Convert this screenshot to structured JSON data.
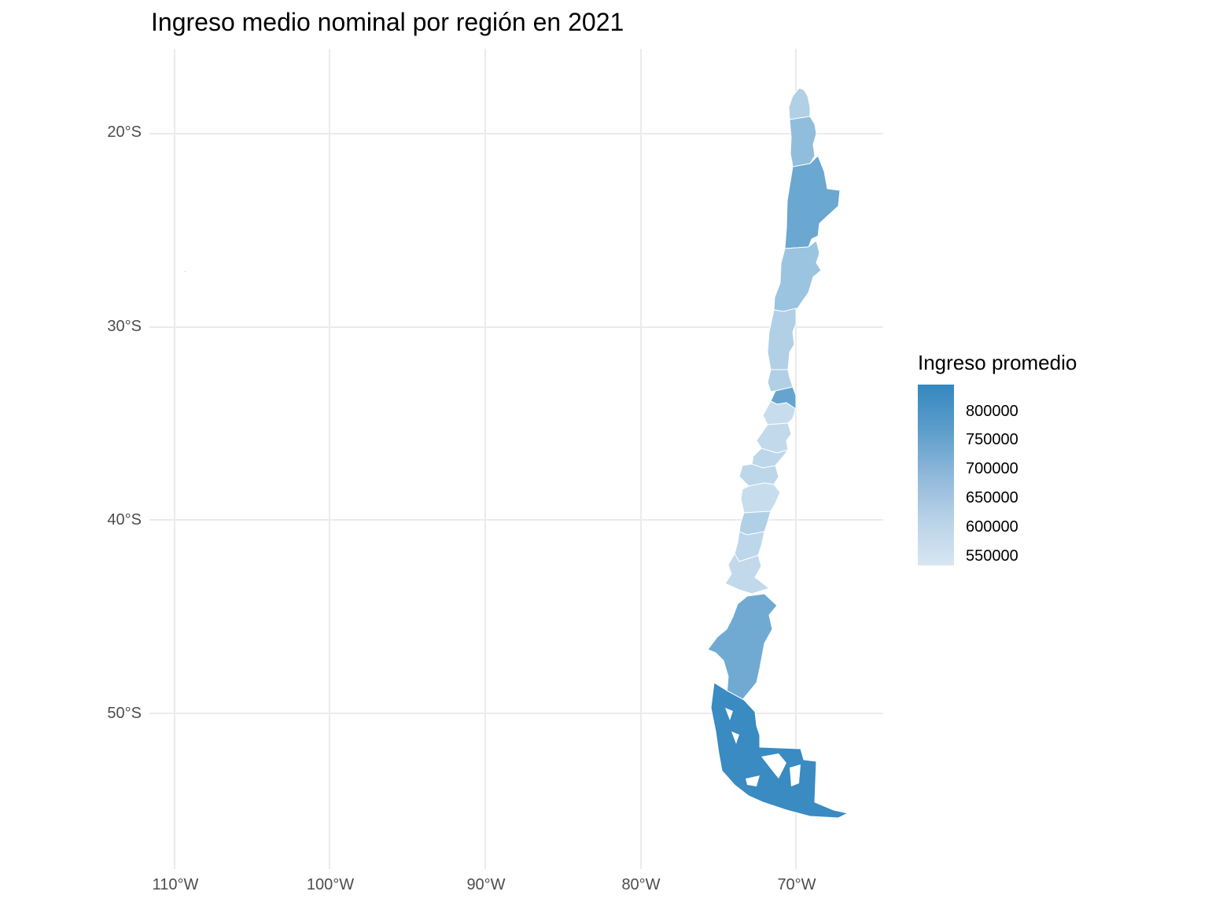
{
  "title": "Ingreso medio nominal por región en 2021",
  "legend": {
    "title": "Ingreso promedio",
    "labels": [
      "800000",
      "750000",
      "700000",
      "650000",
      "600000",
      "550000"
    ],
    "color_high": "#3488c0",
    "color_low": "#d7e6f2"
  },
  "axes": {
    "y_ticks": [
      "20°S",
      "30°S",
      "40°S",
      "50°S"
    ],
    "x_ticks": [
      "110°W",
      "100°W",
      "90°W",
      "80°W",
      "70°W"
    ]
  },
  "chart_data": {
    "type": "choropleth",
    "map": "Chile regions",
    "xlim": [
      -111,
      -65
    ],
    "ylim": [
      -57,
      -16
    ],
    "grid": true,
    "legend_position": "right",
    "color_scale": {
      "low": "#d7e6f2",
      "high": "#3488c0",
      "min": 530000,
      "max": 830000
    },
    "regions_north_to_south": [
      {
        "order": 1,
        "value": 600000
      },
      {
        "order": 2,
        "value": 660000
      },
      {
        "order": 3,
        "value": 730000
      },
      {
        "order": 4,
        "value": 640000
      },
      {
        "order": 5,
        "value": 600000
      },
      {
        "order": 6,
        "value": 600000
      },
      {
        "order": 7,
        "value": 740000
      },
      {
        "order": 8,
        "value": 560000
      },
      {
        "order": 9,
        "value": 570000
      },
      {
        "order": 10,
        "value": 580000
      },
      {
        "order": 11,
        "value": 580000
      },
      {
        "order": 12,
        "value": 560000
      },
      {
        "order": 13,
        "value": 600000
      },
      {
        "order": 14,
        "value": 580000
      },
      {
        "order": 15,
        "value": 570000
      },
      {
        "order": 16,
        "value": 720000
      },
      {
        "order": 17,
        "value": 820000
      }
    ]
  }
}
